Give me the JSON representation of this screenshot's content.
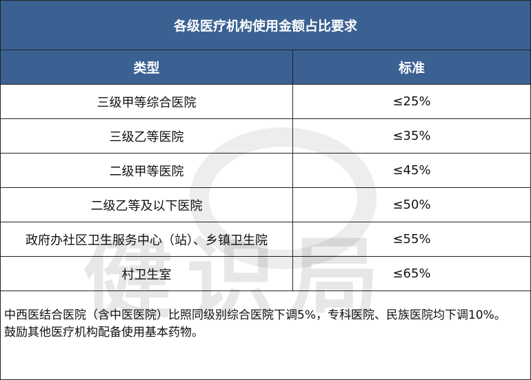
{
  "title": "各级医疗机构使用金额占比要求",
  "headers": [
    "类型",
    "标准"
  ],
  "rows": [
    {
      "type": "三级甲等综合医院",
      "standard": "≤25%"
    },
    {
      "type": "三级乙等医院",
      "standard": "≤35%"
    },
    {
      "type": "二级甲等医院",
      "standard": "≤45%"
    },
    {
      "type": "二级乙等及以下医院",
      "standard": "≤50%"
    },
    {
      "type": "政府办社区卫生服务中心（站）、乡镇卫生院",
      "standard": "≤55%"
    },
    {
      "type": "村卫生室",
      "standard": "≤65%"
    }
  ],
  "notes": [
    "中西医结合医院（含中医医院）比照同级别综合医院下调5%，专科医院、民族医院均下调10%。",
    "鼓励其他医疗机构配备使用基本药物。"
  ],
  "watermark": "健识局",
  "colors": {
    "header_bg": "#3a6192",
    "header_text": "#ffffff"
  }
}
